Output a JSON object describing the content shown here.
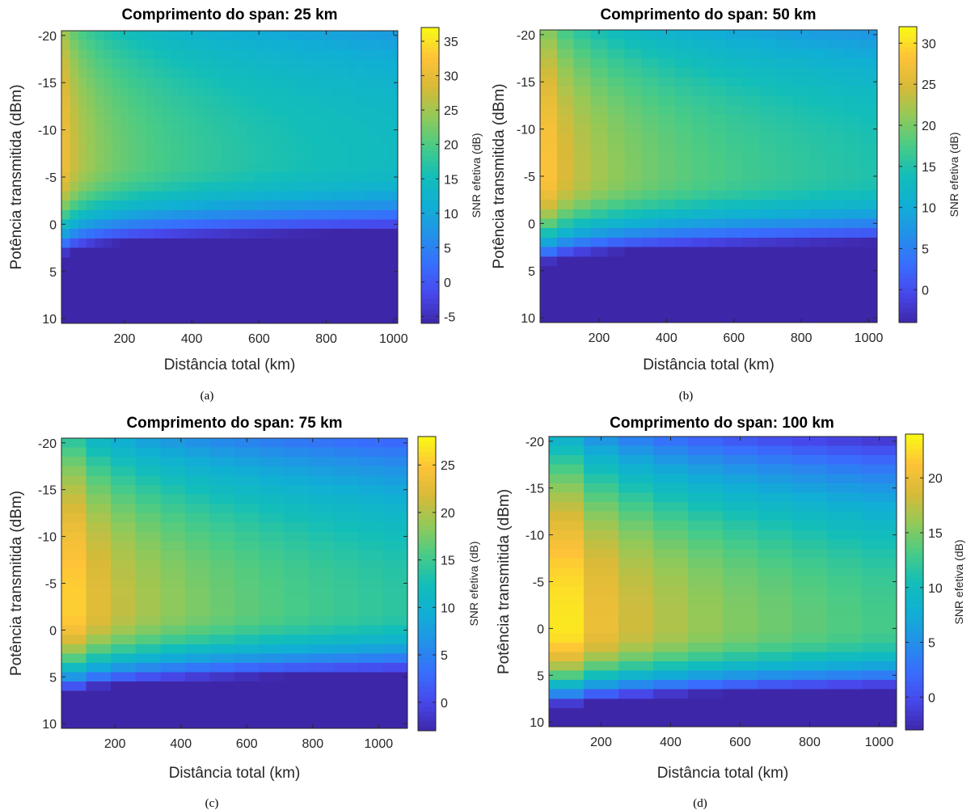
{
  "chart_data": [
    {
      "type": "heatmap",
      "caption": "(a)",
      "title": "Comprimento do span: 25 km",
      "xlabel": "Distância total (km)",
      "ylabel": "Potência transmitida (dBm)",
      "colorbar_label": "SNR efetiva (dB)",
      "span_km": 25,
      "xlim": [
        12.5,
        1012.5
      ],
      "ylim": [
        -20.5,
        10.5
      ],
      "xticks": [
        200,
        400,
        600,
        800,
        1000
      ],
      "yticks": [
        -20,
        -15,
        -10,
        -5,
        0,
        5,
        10
      ],
      "clim": [
        -6,
        37
      ],
      "cbticks": [
        -5,
        0,
        5,
        10,
        15,
        20,
        25,
        30,
        35
      ],
      "x_cells": 40,
      "y_cells": 31,
      "peak_power_dbm": -6.5,
      "snr_max": 37,
      "snr_min": -6
    },
    {
      "type": "heatmap",
      "caption": "(b)",
      "title": "Comprimento do span: 50 km",
      "xlabel": "Distância total (km)",
      "ylabel": "Potência transmitida (dBm)",
      "colorbar_label": "SNR efetiva (dB)",
      "span_km": 50,
      "xlim": [
        25,
        1025
      ],
      "ylim": [
        -20.5,
        10.5
      ],
      "xticks": [
        200,
        400,
        600,
        800,
        1000
      ],
      "yticks": [
        -20,
        -15,
        -10,
        -5,
        0,
        5,
        10
      ],
      "clim": [
        -4,
        32
      ],
      "cbticks": [
        0,
        5,
        10,
        15,
        20,
        25,
        30
      ],
      "x_cells": 20,
      "y_cells": 31,
      "peak_power_dbm": -5,
      "snr_max": 32,
      "snr_min": -4
    },
    {
      "type": "heatmap",
      "caption": "(c)",
      "title": "Comprimento do span: 75 km",
      "xlabel": "Distância total (km)",
      "ylabel": "Potência transmitida (dBm)",
      "colorbar_label": "SNR efetiva (dB)",
      "span_km": 75,
      "xlim": [
        37.5,
        1087.5
      ],
      "ylim": [
        -20.5,
        10.5
      ],
      "xticks": [
        200,
        400,
        600,
        800,
        1000
      ],
      "yticks": [
        -20,
        -15,
        -10,
        -5,
        0,
        5,
        10
      ],
      "clim": [
        -3,
        28
      ],
      "cbticks": [
        0,
        5,
        10,
        15,
        20,
        25
      ],
      "x_cells": 14,
      "y_cells": 31,
      "peak_power_dbm": -2,
      "snr_max": 28,
      "snr_min": -3
    },
    {
      "type": "heatmap",
      "caption": "(d)",
      "title": "Comprimento do span: 100 km",
      "xlabel": "Distância total (km)",
      "ylabel": "Potência transmitida (dBm)",
      "colorbar_label": "SNR efetiva (dB)",
      "span_km": 100,
      "xlim": [
        50,
        1050
      ],
      "ylim": [
        -20.5,
        10.5
      ],
      "xticks": [
        200,
        400,
        600,
        800,
        1000
      ],
      "yticks": [
        -20,
        -15,
        -10,
        -5,
        0,
        5,
        10
      ],
      "clim": [
        -3,
        24
      ],
      "cbticks": [
        0,
        5,
        10,
        15,
        20
      ],
      "x_cells": 10,
      "y_cells": 31,
      "peak_power_dbm": 0,
      "snr_max": 24,
      "snr_min": -3
    }
  ]
}
